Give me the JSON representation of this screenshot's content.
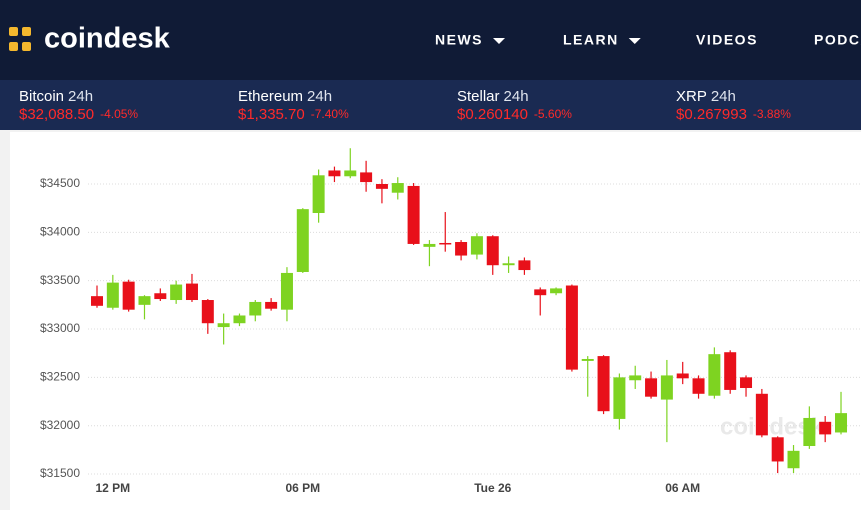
{
  "header": {
    "logo": "coindesk",
    "nav": [
      "NEWS",
      "LEARN",
      "VIDEOS",
      "PODCA"
    ]
  },
  "tickers": [
    {
      "name": "Bitcoin",
      "period": "24h",
      "price": "$32,088.50",
      "change": "-4.05%"
    },
    {
      "name": "Ethereum",
      "period": "24h",
      "price": "$1,335.70",
      "change": "-7.40%"
    },
    {
      "name": "Stellar",
      "period": "24h",
      "price": "$0.260140",
      "change": "-5.60%"
    },
    {
      "name": "XRP",
      "period": "24h",
      "price": "$0.267993",
      "change": "-3.88%"
    }
  ],
  "chart_data": {
    "type": "candlestick",
    "watermark": "coindesk",
    "categories": [
      null,
      "12 PM",
      null,
      null,
      null,
      null,
      null,
      null,
      null,
      null,
      null,
      null,
      null,
      "06 PM",
      null,
      null,
      null,
      null,
      null,
      null,
      null,
      null,
      null,
      null,
      null,
      "Tue 26",
      null,
      null,
      null,
      null,
      null,
      null,
      null,
      null,
      null,
      null,
      null,
      "06 AM",
      null,
      null,
      null,
      null,
      null,
      null,
      null,
      null,
      null,
      null
    ],
    "open": [
      33340,
      33220,
      33490,
      33250,
      33370,
      33300,
      33470,
      33300,
      33020,
      33060,
      33140,
      33280,
      33200,
      33590,
      34200,
      34640,
      34580,
      34620,
      34500,
      34410,
      34480,
      33850,
      33890,
      33900,
      33770,
      33960,
      33660,
      33710,
      33410,
      33370,
      33450,
      32670,
      32720,
      32070,
      32470,
      32490,
      32270,
      32540,
      32490,
      32310,
      32760,
      32500,
      32330,
      31880,
      31560,
      31790,
      32040,
      31930
    ],
    "high": [
      33450,
      33560,
      33510,
      33350,
      33420,
      33500,
      33570,
      33310,
      33160,
      33160,
      33300,
      33320,
      33640,
      34250,
      34650,
      34680,
      34870,
      34740,
      34550,
      34570,
      34510,
      33920,
      34210,
      33920,
      33990,
      33970,
      33750,
      33740,
      33430,
      33430,
      33460,
      32720,
      32730,
      32540,
      32620,
      32560,
      32680,
      32660,
      32520,
      32810,
      32780,
      32520,
      32380,
      31890,
      31800,
      32200,
      32100,
      32350
    ],
    "low": [
      33220,
      33200,
      33180,
      33100,
      33290,
      33260,
      33280,
      32950,
      32840,
      33030,
      33080,
      33190,
      33080,
      33580,
      34100,
      34520,
      34560,
      34420,
      34300,
      34340,
      33870,
      33650,
      33800,
      33710,
      33720,
      33560,
      33580,
      33560,
      33140,
      33350,
      32560,
      32300,
      32120,
      31960,
      32380,
      32280,
      31830,
      32430,
      32280,
      32280,
      32330,
      32300,
      31880,
      31510,
      31510,
      31760,
      31830,
      31910
    ],
    "close": [
      33240,
      33480,
      33200,
      33340,
      33310,
      33460,
      33300,
      33060,
      33060,
      33140,
      33280,
      33210,
      33580,
      34240,
      34590,
      34580,
      34640,
      34520,
      34450,
      34510,
      33880,
      33880,
      33880,
      33760,
      33960,
      33660,
      33680,
      33610,
      33350,
      33420,
      32580,
      32690,
      32150,
      32500,
      32520,
      32300,
      32520,
      32490,
      32330,
      32740,
      32370,
      32390,
      31900,
      31630,
      31740,
      32080,
      31910,
      32130
    ],
    "up_color": "#7ed321",
    "down_color": "#e8101a",
    "ylim": [
      31340,
      34950
    ],
    "yticks": [
      {
        "value": 31500,
        "label": "$31500"
      },
      {
        "value": 32000,
        "label": "$32000"
      },
      {
        "value": 32500,
        "label": "$32500"
      },
      {
        "value": 33000,
        "label": "$33000"
      },
      {
        "value": 33500,
        "label": "$33500"
      },
      {
        "value": 34000,
        "label": "$34000"
      },
      {
        "value": 34500,
        "label": "$34500"
      }
    ],
    "grid": true
  }
}
